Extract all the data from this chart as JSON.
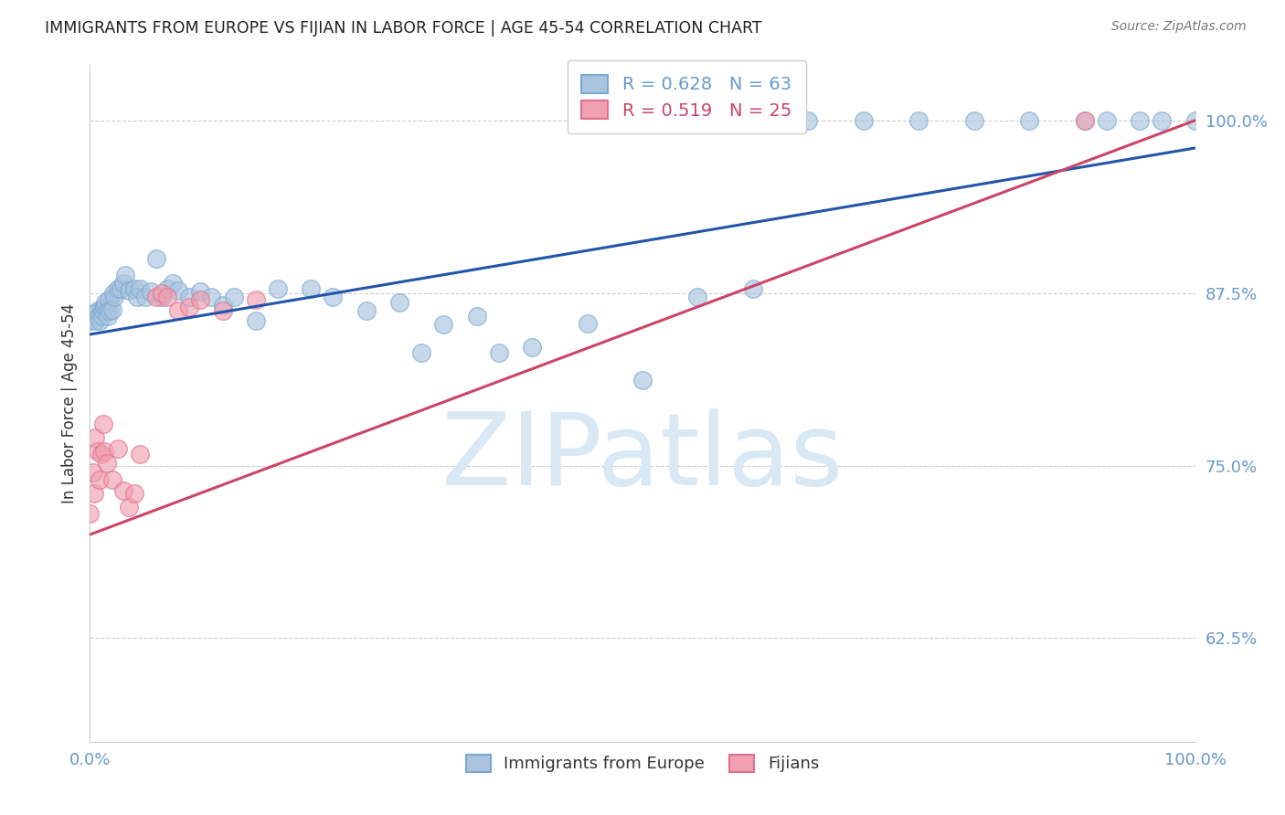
{
  "title": "IMMIGRANTS FROM EUROPE VS FIJIAN IN LABOR FORCE | AGE 45-54 CORRELATION CHART",
  "source": "Source: ZipAtlas.com",
  "ylabel": "In Labor Force | Age 45-54",
  "xlim": [
    0.0,
    1.0
  ],
  "ylim": [
    0.55,
    1.04
  ],
  "xtick_labels": [
    "0.0%",
    "100.0%"
  ],
  "ytick_labels": [
    "62.5%",
    "75.0%",
    "87.5%",
    "100.0%"
  ],
  "ytick_positions": [
    0.625,
    0.75,
    0.875,
    1.0
  ],
  "blue_R": 0.628,
  "blue_N": 63,
  "pink_R": 0.519,
  "pink_N": 25,
  "legend_label_blue": "Immigrants from Europe",
  "legend_label_pink": "Fijians",
  "blue_color": "#aac4e0",
  "blue_edge_color": "#7aa8d0",
  "blue_line_color": "#2255aa",
  "pink_color": "#f0a0b0",
  "pink_edge_color": "#e07090",
  "pink_line_color": "#cc4466",
  "watermark": "ZIPatlas",
  "watermark_color": "#d8e8f5",
  "blue_scatter_x": [
    0.0,
    0.003,
    0.005,
    0.007,
    0.008,
    0.009,
    0.01,
    0.011,
    0.012,
    0.013,
    0.014,
    0.015,
    0.016,
    0.017,
    0.018,
    0.02,
    0.021,
    0.022,
    0.025,
    0.028,
    0.03,
    0.032,
    0.035,
    0.04,
    0.043,
    0.045,
    0.05,
    0.055,
    0.06,
    0.065,
    0.07,
    0.075,
    0.08,
    0.09,
    0.1,
    0.11,
    0.12,
    0.13,
    0.15,
    0.17,
    0.2,
    0.22,
    0.25,
    0.28,
    0.3,
    0.32,
    0.35,
    0.37,
    0.4,
    0.45,
    0.5,
    0.55,
    0.6,
    0.65,
    0.7,
    0.75,
    0.8,
    0.85,
    0.9,
    0.92,
    0.95,
    0.97,
    1.0
  ],
  "blue_scatter_y": [
    0.855,
    0.86,
    0.855,
    0.862,
    0.858,
    0.855,
    0.863,
    0.858,
    0.862,
    0.865,
    0.868,
    0.862,
    0.858,
    0.87,
    0.862,
    0.863,
    0.875,
    0.872,
    0.878,
    0.878,
    0.882,
    0.888,
    0.877,
    0.878,
    0.872,
    0.878,
    0.872,
    0.876,
    0.9,
    0.872,
    0.878,
    0.882,
    0.877,
    0.872,
    0.876,
    0.872,
    0.866,
    0.872,
    0.855,
    0.878,
    0.878,
    0.872,
    0.862,
    0.868,
    0.832,
    0.852,
    0.858,
    0.832,
    0.836,
    0.853,
    0.812,
    0.872,
    0.878,
    1.0,
    1.0,
    1.0,
    1.0,
    1.0,
    1.0,
    1.0,
    1.0,
    1.0,
    1.0
  ],
  "pink_scatter_x": [
    0.0,
    0.003,
    0.004,
    0.005,
    0.007,
    0.009,
    0.01,
    0.012,
    0.013,
    0.015,
    0.02,
    0.025,
    0.03,
    0.035,
    0.04,
    0.045,
    0.06,
    0.065,
    0.07,
    0.08,
    0.09,
    0.1,
    0.12,
    0.15,
    0.9
  ],
  "pink_scatter_y": [
    0.715,
    0.745,
    0.73,
    0.77,
    0.76,
    0.74,
    0.758,
    0.78,
    0.76,
    0.752,
    0.74,
    0.762,
    0.732,
    0.72,
    0.73,
    0.758,
    0.872,
    0.875,
    0.872,
    0.862,
    0.865,
    0.87,
    0.862,
    0.87,
    1.0
  ],
  "blue_trend_y_start": 0.845,
  "blue_trend_y_end": 0.98,
  "pink_trend_y_start": 0.7,
  "pink_trend_y_end": 1.0,
  "background_color": "#ffffff",
  "grid_color": "#cccccc",
  "axis_color": "#6699cc",
  "title_color": "#222222",
  "source_color": "#777777"
}
